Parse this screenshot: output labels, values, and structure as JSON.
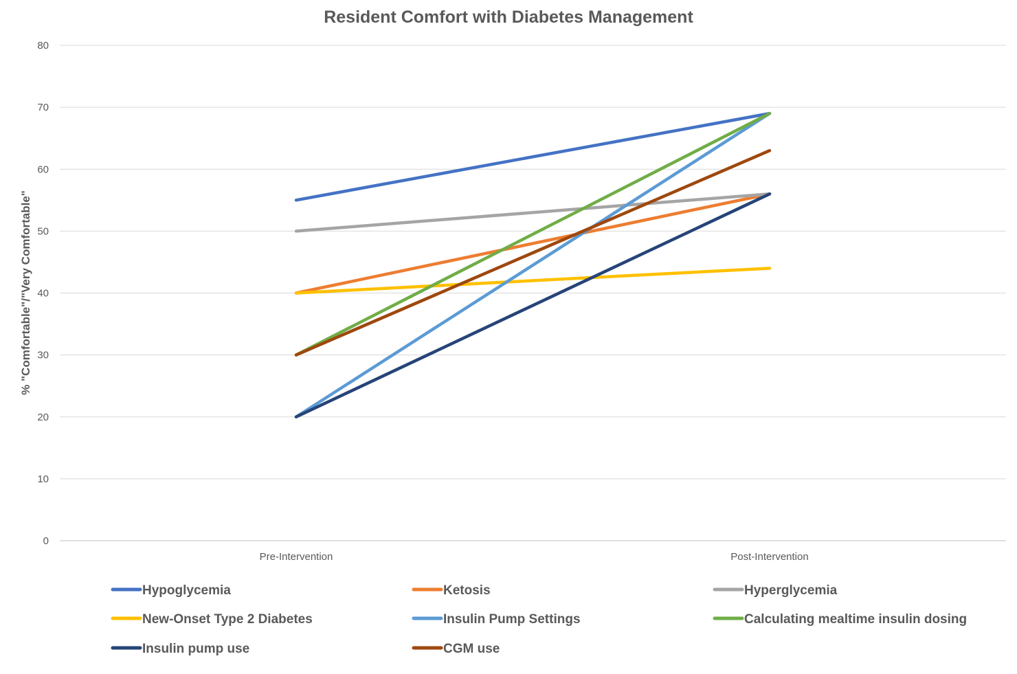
{
  "chart_data": {
    "type": "line",
    "title": "Resident Comfort with Diabetes Management",
    "xlabel": "",
    "ylabel": "% \"Comfortable\"/\"Very Comfortable\"",
    "categories": [
      "Pre-Intervention",
      "Post-Intervention"
    ],
    "ylim": [
      0,
      80
    ],
    "yticks": [
      0,
      10,
      20,
      30,
      40,
      50,
      60,
      70,
      80
    ],
    "grid": true,
    "legend_position": "bottom",
    "series": [
      {
        "name": "Hypoglycemia",
        "values": [
          55,
          69
        ],
        "color": "#4472c4"
      },
      {
        "name": "Ketosis",
        "values": [
          40,
          56
        ],
        "color": "#ed7d31"
      },
      {
        "name": "Hyperglycemia",
        "values": [
          50,
          56
        ],
        "color": "#a5a5a5"
      },
      {
        "name": "New-Onset Type 2 Diabetes",
        "values": [
          40,
          44
        ],
        "color": "#ffc000"
      },
      {
        "name": "Insulin Pump Settings",
        "values": [
          20,
          69
        ],
        "color": "#5b9bd5"
      },
      {
        "name": "Calculating mealtime insulin dosing",
        "values": [
          30,
          69
        ],
        "color": "#70ad47"
      },
      {
        "name": "Insulin pump use",
        "values": [
          20,
          56
        ],
        "color": "#264478"
      },
      {
        "name": "CGM use",
        "values": [
          30,
          63
        ],
        "color": "#9e480e"
      }
    ]
  }
}
